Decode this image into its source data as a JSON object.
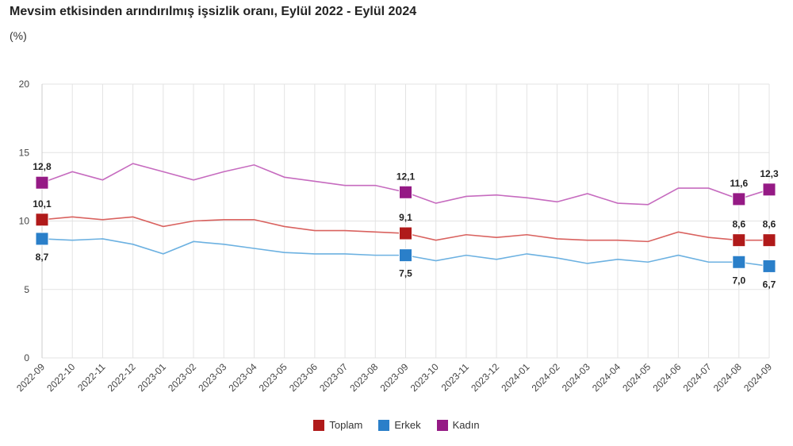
{
  "chart_data": {
    "type": "line",
    "title": "Mevsim etkisinden arındırılmış işsizlik oranı, Eylül 2022 - Eylül 2024",
    "ylabel": "(%)",
    "ylim": [
      0,
      20
    ],
    "yticks": [
      0,
      5,
      10,
      15,
      20
    ],
    "grid": true,
    "legend_position": "bottom",
    "categories": [
      "2022-09",
      "2022-10",
      "2022-11",
      "2022-12",
      "2023-01",
      "2023-02",
      "2023-03",
      "2023-04",
      "2023-05",
      "2023-06",
      "2023-07",
      "2023-08",
      "2023-09",
      "2023-10",
      "2023-11",
      "2023-12",
      "2024-01",
      "2024-02",
      "2024-03",
      "2024-04",
      "2024-05",
      "2024-06",
      "2024-07",
      "2024-08",
      "2024-09"
    ],
    "labeled_indices": [
      0,
      12,
      23,
      24
    ],
    "series": [
      {
        "name": "Toplam",
        "color": "#b01a1a",
        "line_color": "#d9625f",
        "values": [
          10.1,
          10.3,
          10.1,
          10.3,
          9.6,
          10.0,
          10.1,
          10.1,
          9.6,
          9.3,
          9.3,
          9.2,
          9.1,
          8.6,
          9.0,
          8.8,
          9.0,
          8.7,
          8.6,
          8.6,
          8.5,
          9.2,
          8.8,
          8.6,
          8.6
        ],
        "labels": [
          "10,1",
          "9,1",
          "8,6",
          "8,6"
        ]
      },
      {
        "name": "Erkek",
        "color": "#2a7fc9",
        "line_color": "#6cb1e1",
        "values": [
          8.7,
          8.6,
          8.7,
          8.3,
          7.6,
          8.5,
          8.3,
          8.0,
          7.7,
          7.6,
          7.6,
          7.5,
          7.5,
          7.1,
          7.5,
          7.2,
          7.6,
          7.3,
          6.9,
          7.2,
          7.0,
          7.5,
          7.0,
          7.0,
          6.7
        ],
        "labels": [
          "8,7",
          "7,5",
          "7,0",
          "6,7"
        ]
      },
      {
        "name": "Kadın",
        "color": "#951a85",
        "line_color": "#c66bbf",
        "values": [
          12.8,
          13.6,
          13.0,
          14.2,
          13.6,
          13.0,
          13.6,
          14.1,
          13.2,
          12.9,
          12.6,
          12.6,
          12.1,
          11.3,
          11.8,
          11.9,
          11.7,
          11.4,
          12.0,
          11.3,
          11.2,
          12.4,
          12.4,
          11.6,
          12.3
        ],
        "labels": [
          "12,8",
          "12,1",
          "11,6",
          "12,3"
        ]
      }
    ]
  }
}
